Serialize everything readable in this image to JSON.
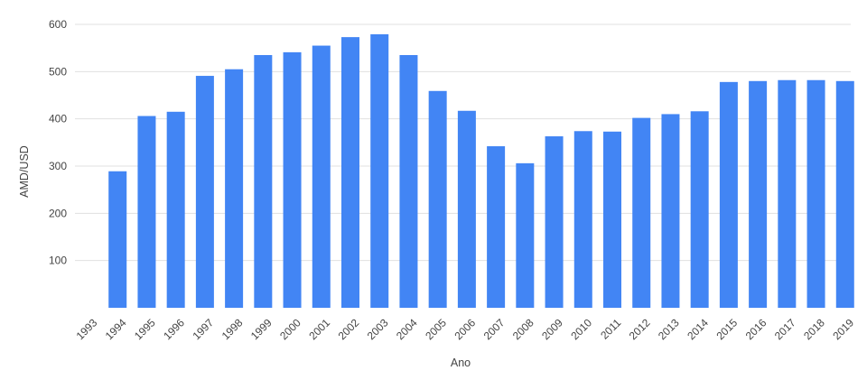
{
  "chart_data": {
    "type": "bar",
    "title": "",
    "xlabel": "Ano",
    "ylabel": "AMD/USD",
    "categories": [
      "1993",
      "1994",
      "1995",
      "1996",
      "1997",
      "1998",
      "1999",
      "2000",
      "2001",
      "2002",
      "2003",
      "2004",
      "2005",
      "2006",
      "2007",
      "2008",
      "2009",
      "2010",
      "2011",
      "2012",
      "2013",
      "2014",
      "2015",
      "2016",
      "2017",
      "2018",
      "2019"
    ],
    "values": [
      null,
      289,
      406,
      415,
      491,
      505,
      535,
      541,
      555,
      573,
      579,
      535,
      459,
      417,
      342,
      306,
      363,
      374,
      373,
      402,
      410,
      416,
      478,
      480,
      482,
      482,
      480
    ],
    "ylim": [
      0,
      600
    ],
    "yticks": [
      100,
      200,
      300,
      400,
      500,
      600
    ],
    "grid": true,
    "legend": "none",
    "bar_color": "#4285F4",
    "grid_color": "#e0e0e0"
  }
}
